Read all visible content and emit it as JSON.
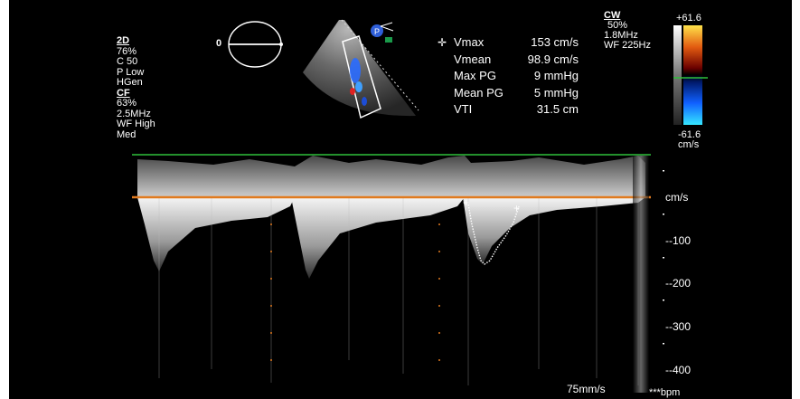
{
  "left_params": {
    "mode_2d": "2D",
    "gain_2d": "76%",
    "compress": "C 50",
    "power": "P Low",
    "freq_mode": "HGen",
    "mode_cf": "CF",
    "gain_cf": "63%",
    "freq_cf": "2.5MHz",
    "wall_filter": "WF High",
    "level": "Med"
  },
  "angle_label": "0",
  "measurements": {
    "cursor_glyph": "✛",
    "rows": [
      {
        "label": "Vmax",
        "value": "153 cm/s"
      },
      {
        "label": "Vmean",
        "value": "98.9 cm/s"
      },
      {
        "label": "Max PG",
        "value": "9 mmHg"
      },
      {
        "label": "Mean PG",
        "value": "5 mmHg"
      },
      {
        "label": "VTI",
        "value": "31.5 cm"
      }
    ]
  },
  "cw_params": {
    "mode": "CW",
    "gain": "50%",
    "freq": "1.8MHz",
    "wall_filter": "WF 225Hz"
  },
  "color_scale": {
    "top": "+61.6",
    "bottom": "-61.6",
    "unit": "cm/s"
  },
  "doppler_axis": {
    "unit": "cm/s",
    "ticks": [
      "--100",
      "--200",
      "--300",
      "--400"
    ]
  },
  "sweep_speed": "75mm/s",
  "heart_rate": "***bpm",
  "colors": {
    "baseline": "#e07a1f",
    "top_line": "#2fbf3a",
    "tracing": "#ffffff"
  }
}
